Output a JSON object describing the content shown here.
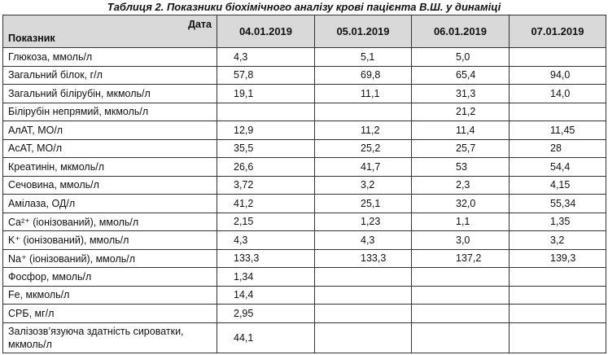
{
  "title": "Таблиця 2. Показники біохімічного аналізу крові пацієнта В.Ш. у динаміці",
  "table": {
    "header": {
      "corner_top": "Дата",
      "corner_bottom": "Показник",
      "dates": [
        "04.01.2019",
        "05.01.2019",
        "06.01.2019",
        "07.01.2019"
      ]
    },
    "rows": [
      [
        "Глюкоза, ммоль/л",
        "4,3",
        "5,1",
        "5,0",
        null
      ],
      [
        "Загальний білок, г/л",
        "57,8",
        "69,8",
        "65,4",
        "94,0"
      ],
      [
        "Загальний білірубін, мкмоль/л",
        "19,1",
        "11,1",
        "31,3",
        "14,0"
      ],
      [
        "Білірубін непрямий, мкмоль/л",
        null,
        null,
        "21,2",
        null
      ],
      [
        "АлАТ, МО/л",
        "12,9",
        "11,2",
        "11,4",
        "11,45"
      ],
      [
        "АсАТ, МО/л",
        "35,5",
        "25,2",
        "25,7",
        "28"
      ],
      [
        "Креатинін, мкмоль/л",
        "26,6",
        "41,7",
        "53",
        "54,4"
      ],
      [
        "Сечовина, ммоль/л",
        "3,72",
        "3,2",
        "2,3",
        "4,15"
      ],
      [
        "Амілаза, ОД/л",
        "41,2",
        "25,1",
        "32,0",
        "55,34"
      ],
      [
        "Ca²⁺ (іонізований), ммоль/л",
        "2,15",
        "1,23",
        "1,1",
        "1,35"
      ],
      [
        "K⁺ (іонізований), ммоль/л",
        "4,3",
        "4,3",
        "3,0",
        "3,2"
      ],
      [
        "Na⁺ (іонізований), ммоль/л",
        "133,3",
        "133,3",
        "137,2",
        "139,3"
      ],
      [
        "Фосфор, ммоль/л",
        "1,34",
        null,
        null,
        null
      ],
      [
        "Fe, мкмоль/л",
        "14,4",
        null,
        null,
        null
      ],
      [
        "СРБ, мг/л",
        "2,95",
        null,
        null,
        null
      ],
      [
        "Залізозв’язуюча здатність сироватки, мкмоль/л",
        "44,1",
        null,
        null,
        null
      ]
    ]
  }
}
